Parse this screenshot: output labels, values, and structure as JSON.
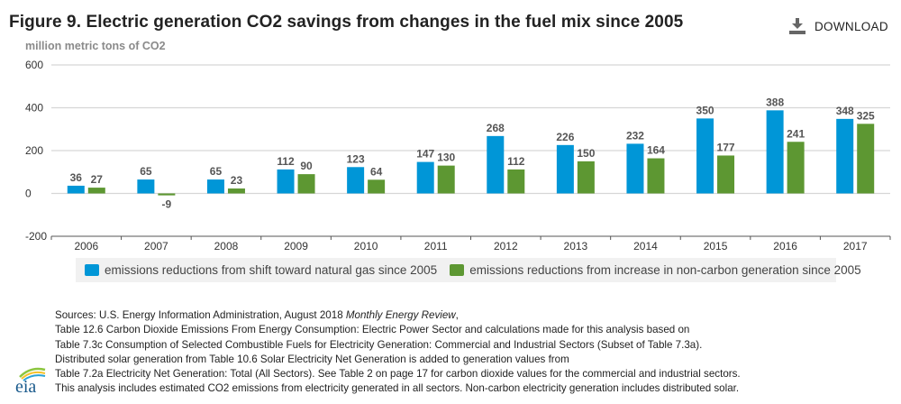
{
  "header": {
    "title": "Figure 9. Electric generation CO2 savings from changes in the fuel mix since 2005",
    "unit_label": "million metric tons of CO2",
    "download_label": "DOWNLOAD",
    "download_icon": "download-icon"
  },
  "chart_data": {
    "type": "bar",
    "title": "Figure 9. Electric generation CO2 savings from changes in the fuel mix since 2005",
    "xlabel": "",
    "ylabel": "million metric tons of CO2",
    "ylim": [
      -200,
      600
    ],
    "yticks": [
      600,
      400,
      200,
      0,
      -200
    ],
    "grid": true,
    "legend_position": "bottom",
    "categories": [
      "2006",
      "2007",
      "2008",
      "2009",
      "2010",
      "2011",
      "2012",
      "2013",
      "2014",
      "2015",
      "2016",
      "2017"
    ],
    "series": [
      {
        "name": "emissions reductions from shift toward natural gas since 2005",
        "color": "#0096d7",
        "values": [
          36,
          65,
          65,
          112,
          123,
          147,
          268,
          226,
          232,
          350,
          388,
          348
        ]
      },
      {
        "name": "emissions reductions from increase in non-carbon generation since 2005",
        "color": "#5d9732",
        "values": [
          27,
          -9,
          23,
          90,
          64,
          130,
          112,
          150,
          164,
          177,
          241,
          325
        ]
      }
    ]
  },
  "sources": {
    "line1_prefix": "Sources: U.S. Energy Information Administration, August 2018 ",
    "line1_italic": "Monthly Energy Review",
    "line1_suffix": ",",
    "line2": "Table 12.6 Carbon Dioxide Emissions From Energy Consumption: Electric Power Sector and calculations made for this analysis based on",
    "line3": "Table 7.3c Consumption of Selected Combustible Fuels for Electricity Generation: Commercial and Industrial Sectors (Subset of Table 7.3a).",
    "line4": "Distributed solar generation from Table 10.6 Solar Electricity Net Generation is added to generation values from",
    "line5": "Table 7.2a Electricity Net Generation: Total (All Sectors). See Table 2 on page 17 for carbon dioxide values for the commercial and industrial sectors.",
    "line6": "This analysis includes estimated CO2 emissions from electricity generated in all sectors. Non-carbon electricity generation includes distributed solar."
  },
  "logo": {
    "text": "eia"
  }
}
